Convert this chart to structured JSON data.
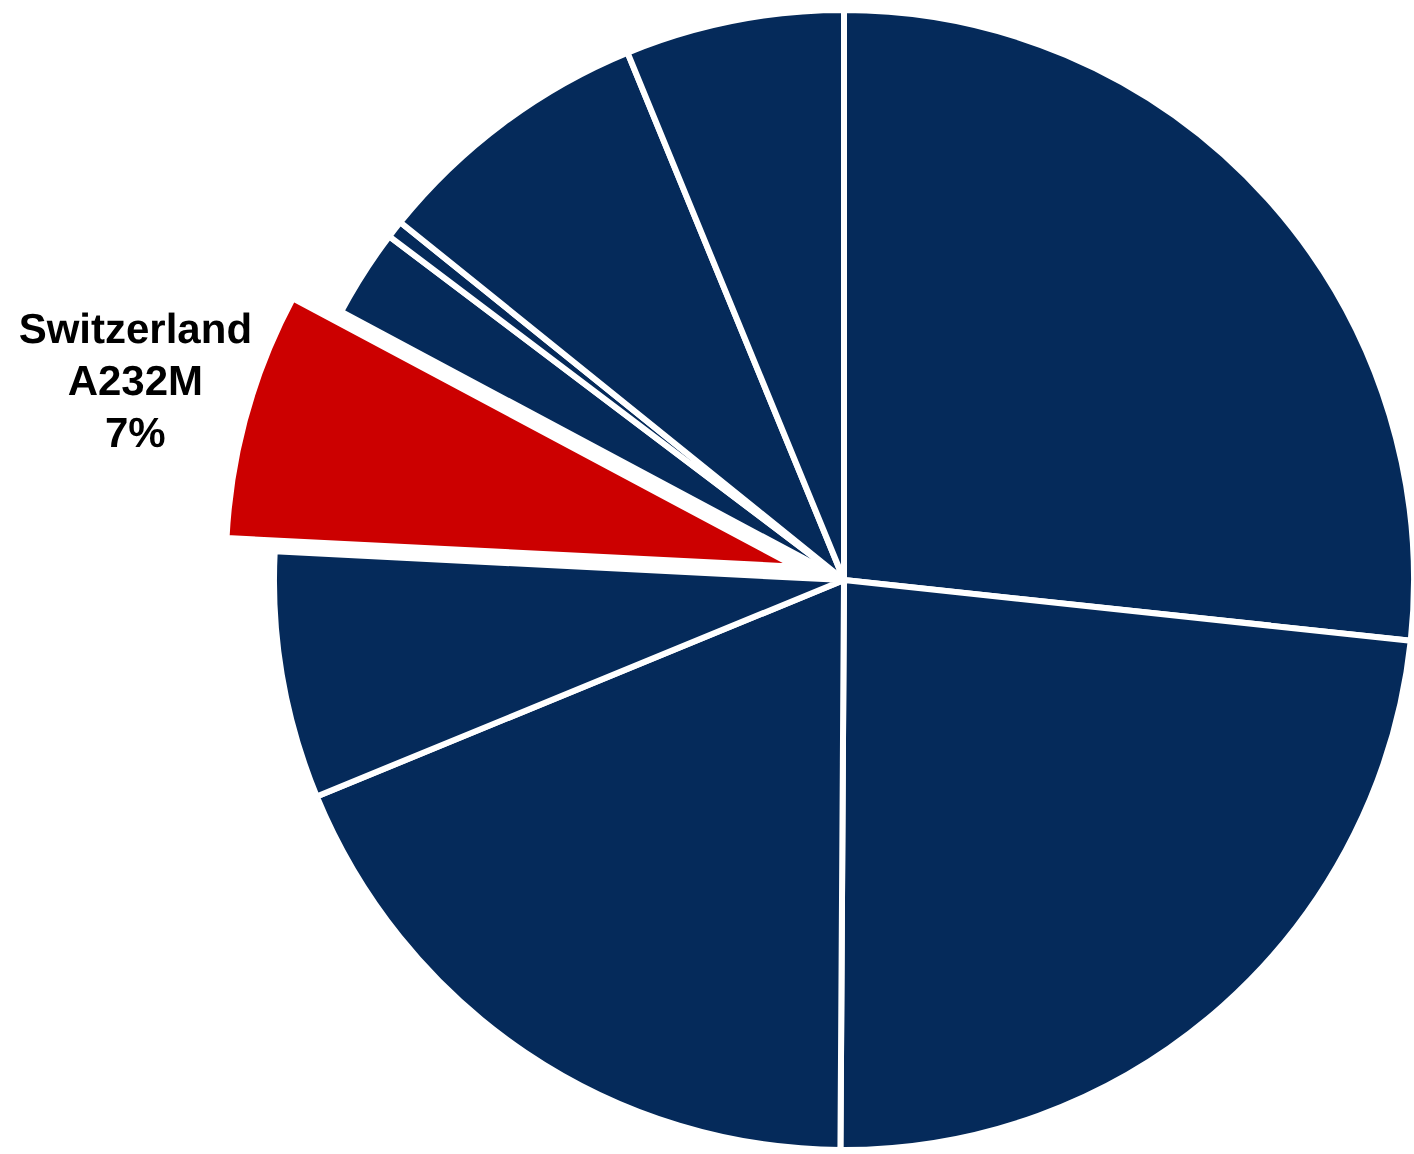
{
  "chart_data": {
    "type": "pie",
    "categories": [
      null,
      null,
      null,
      null,
      "Switzerland",
      null,
      null,
      null,
      null
    ],
    "values": [
      26.7,
      23.4,
      18.7,
      7.0,
      7,
      2.5,
      0.5,
      8,
      6.2
    ],
    "colors": [
      "#052a5a",
      "#052a5a",
      "#052a5a",
      "#052a5a",
      "#cc0000",
      "#052a5a",
      "#052a5a",
      "#052a5a",
      "#052a5a"
    ],
    "value_labels": [
      null,
      null,
      null,
      null,
      "A232M\n7%",
      null,
      null,
      null,
      null
    ]
  }
}
